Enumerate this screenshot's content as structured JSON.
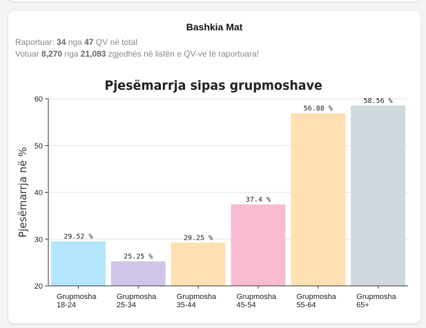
{
  "card": {
    "title": "Bashkia Mat",
    "reported_prefix": "Raportuar: ",
    "reported_count": "34",
    "reported_mid": " nga ",
    "reported_total": "47",
    "reported_suffix": " QV në total",
    "voted_prefix": "Votuar ",
    "voted_count": "8,270",
    "voted_mid": " nga ",
    "voted_total": "21,083",
    "voted_suffix": " zgjedhës në listën e QV-ve të raportuara!"
  },
  "chart_data": {
    "type": "bar",
    "title": "Pjesëmarrja sipas grupmoshave",
    "xlabel": "",
    "ylabel": "Pjesëmarrja në %",
    "ylim": [
      20,
      60
    ],
    "yticks": [
      20,
      30,
      40,
      50,
      60
    ],
    "grid": true,
    "categories": [
      [
        "Grupmosha",
        "18-24"
      ],
      [
        "Grupmosha",
        "25-34"
      ],
      [
        "Grupmosha",
        "35-44"
      ],
      [
        "Grupmosha",
        "45-54"
      ],
      [
        "Grupmosha",
        "55-64"
      ],
      [
        "Grupmosha",
        "65+"
      ]
    ],
    "values": [
      29.52,
      25.25,
      29.25,
      37.4,
      56.88,
      58.56
    ],
    "value_labels": [
      "29.52 %",
      "25.25 %",
      "29.25 %",
      "37.4 %",
      "56.88 %",
      "58.56 %"
    ],
    "colors": [
      "#b3e5fc",
      "#d1c4e9",
      "#ffe0b2",
      "#f8bbd0",
      "#ffe0b2",
      "#cfd8dc"
    ]
  }
}
